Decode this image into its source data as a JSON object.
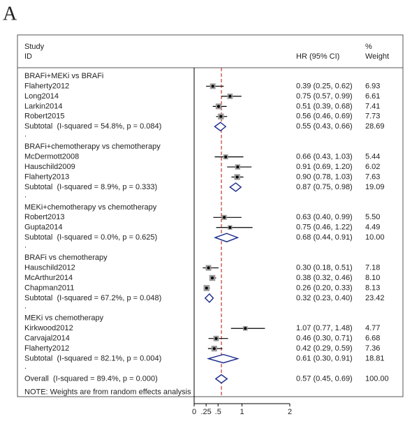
{
  "panel_label": "A",
  "chart_data": {
    "type": "forest",
    "header": {
      "study": "Study",
      "id": "ID",
      "hr": "HR (95% CI)",
      "pct": "%",
      "weight": "Weight"
    },
    "groups": [
      {
        "title": "BRAFi+MEKi vs BRAFi",
        "studies": [
          {
            "name": "Flaherty2012",
            "hr": 0.39,
            "lo": 0.25,
            "hi": 0.62,
            "ci": "0.39 (0.25, 0.62)",
            "weight": 6.93
          },
          {
            "name": "Long2014",
            "hr": 0.75,
            "lo": 0.57,
            "hi": 0.99,
            "ci": "0.75 (0.57, 0.99)",
            "weight": 6.61
          },
          {
            "name": "Larkin2014",
            "hr": 0.51,
            "lo": 0.39,
            "hi": 0.68,
            "ci": "0.51 (0.39, 0.68)",
            "weight": 7.41
          },
          {
            "name": "Robert2015",
            "hr": 0.56,
            "lo": 0.46,
            "hi": 0.69,
            "ci": "0.56 (0.46, 0.69)",
            "weight": 7.73
          }
        ],
        "subtotal": {
          "name": "Subtotal  (I-squared = 54.8%, p = 0.084)",
          "hr": 0.55,
          "lo": 0.43,
          "hi": 0.66,
          "ci": "0.55 (0.43, 0.66)",
          "weight": 28.69
        },
        "sep": "."
      },
      {
        "title": "BRAFi+chemotherapy vs chemotherapy",
        "studies": [
          {
            "name": "McDermott2008",
            "hr": 0.66,
            "lo": 0.43,
            "hi": 1.03,
            "ci": "0.66 (0.43, 1.03)",
            "weight": 5.44
          },
          {
            "name": "Hauschild2009",
            "hr": 0.91,
            "lo": 0.69,
            "hi": 1.2,
            "ci": "0.91 (0.69, 1.20)",
            "weight": 6.02
          },
          {
            "name": "Flaherty2013",
            "hr": 0.9,
            "lo": 0.78,
            "hi": 1.03,
            "ci": "0.90 (0.78, 1.03)",
            "weight": 7.63
          }
        ],
        "subtotal": {
          "name": "Subtotal  (I-squared = 8.9%, p = 0.333)",
          "hr": 0.87,
          "lo": 0.75,
          "hi": 0.98,
          "ci": "0.87 (0.75, 0.98)",
          "weight": 19.09
        },
        "sep": "."
      },
      {
        "title": "MEKi+chemotherapy vs chemotherapy",
        "studies": [
          {
            "name": "Robert2013",
            "hr": 0.63,
            "lo": 0.4,
            "hi": 0.99,
            "ci": "0.63 (0.40, 0.99)",
            "weight": 5.5,
            "weight_label": "5.50"
          },
          {
            "name": "Gupta2014",
            "hr": 0.75,
            "lo": 0.46,
            "hi": 1.22,
            "ci": "0.75 (0.46, 1.22)",
            "weight": 4.49
          }
        ],
        "subtotal": {
          "name": "Subtotal  (I-squared = 0.0%, p = 0.625)",
          "hr": 0.68,
          "lo": 0.44,
          "hi": 0.91,
          "ci": "0.68 (0.44, 0.91)",
          "weight": 10,
          "weight_label": "10.00"
        },
        "sep": "."
      },
      {
        "title": "BRAFi vs chemotherapy",
        "studies": [
          {
            "name": "Hauschild2012",
            "hr": 0.3,
            "lo": 0.18,
            "hi": 0.51,
            "ci": "0.30 (0.18, 0.51)",
            "weight": 7.18
          },
          {
            "name": "McArthur2014",
            "hr": 0.38,
            "lo": 0.32,
            "hi": 0.46,
            "ci": "0.38 (0.32, 0.46)",
            "weight": 8.1,
            "weight_label": "8.10"
          },
          {
            "name": "Chapman2011",
            "hr": 0.26,
            "lo": 0.2,
            "hi": 0.33,
            "ci": "0.26 (0.20, 0.33)",
            "weight": 8.13
          }
        ],
        "subtotal": {
          "name": "Subtotal  (I-squared = 67.2%, p = 0.048)",
          "hr": 0.32,
          "lo": 0.23,
          "hi": 0.4,
          "ci": "0.32 (0.23, 0.40)",
          "weight": 23.42
        },
        "sep": "."
      },
      {
        "title": "MEKi vs chemotherapy",
        "studies": [
          {
            "name": "Kirkwood2012",
            "hr": 1.07,
            "lo": 0.77,
            "hi": 1.48,
            "ci": "1.07 (0.77, 1.48)",
            "weight": 4.77
          },
          {
            "name": "Carvajal2014",
            "hr": 0.46,
            "lo": 0.3,
            "hi": 0.71,
            "ci": "0.46 (0.30, 0.71)",
            "weight": 6.68
          },
          {
            "name": "Flaherty2012",
            "hr": 0.42,
            "lo": 0.29,
            "hi": 0.59,
            "ci": "0.42 (0.29, 0.59)",
            "weight": 7.36
          }
        ],
        "subtotal": {
          "name": "Subtotal  (I-squared = 82.1%, p = 0.004)",
          "hr": 0.61,
          "lo": 0.3,
          "hi": 0.91,
          "ci": "0.61 (0.30, 0.91)",
          "weight": 18.81
        },
        "sep": "."
      }
    ],
    "overall": {
      "name": "Overall  (I-squared = 89.4%, p = 0.000)",
      "hr": 0.57,
      "lo": 0.45,
      "hi": 0.69,
      "ci": "0.57 (0.45, 0.69)",
      "weight": 100,
      "weight_label": "100.00"
    },
    "note": "NOTE: Weights are from random effects analysis",
    "xlim": [
      0,
      2
    ],
    "xticks": [
      0,
      {
        "value": 0.25,
        "label": ".25"
      },
      {
        "value": 0.5,
        "label": ".5"
      },
      1,
      2
    ],
    "marker_color": "#999999",
    "diamond_color": "#1a2a8a",
    "reference_color": "#c0392b"
  }
}
